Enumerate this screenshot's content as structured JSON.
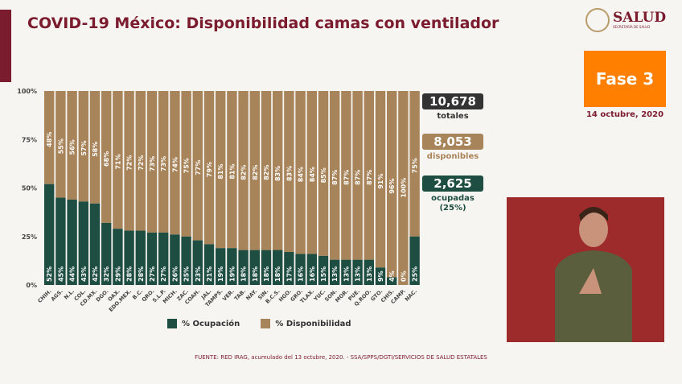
{
  "header": {
    "title": "COVID-19 México: Disponibilidad camas con ventilador",
    "logo": "SALUD",
    "logo_sub": "SECRETARÍA DE SALUD"
  },
  "phase": {
    "label": "Fase 3",
    "color": "#ff7f00",
    "date": "14 octubre, 2020"
  },
  "stats": {
    "total": {
      "value": "10,678",
      "label": "totales",
      "color": "#333333"
    },
    "available": {
      "value": "8,053",
      "label": "disponibles",
      "color": "#a8845a"
    },
    "occupied": {
      "value": "2,625",
      "label": "ocupadas",
      "pct": "(25%)",
      "color": "#1e4d42"
    }
  },
  "legend": {
    "occupied": "% Ocupación",
    "available": "% Disponibilidad"
  },
  "source": "FUENTE: RED IRAG, acumulado del 13 octubre, 2020. -  SSA/SPPS/DGTI/SERVICIOS DE SALUD ESTATALES",
  "chart_data": {
    "type": "bar",
    "stacked": true,
    "ylim": [
      0,
      100
    ],
    "yticks": [
      "0%",
      "25%",
      "50%",
      "75%",
      "100%"
    ],
    "categories": [
      "CHIH.",
      "AGS.",
      "N.L.",
      "COL.",
      "CD.MX.",
      "DGO.",
      "OAX.",
      "EDO.MEX.",
      "B.C.",
      "QRO.",
      "S.L.P.",
      "MICH.",
      "ZAC.",
      "COAH.",
      "JAL.",
      "TAMPS.",
      "VER.",
      "TAB.",
      "NAY.",
      "SIN.",
      "B.C.S.",
      "HGO.",
      "GRO.",
      "TLAX.",
      "YUC.",
      "SON.",
      "MOR.",
      "PUE.",
      "Q.ROO.",
      "GTO.",
      "CHIS.",
      "CAMP.",
      "NAC."
    ],
    "series": [
      {
        "name": "% Ocupación",
        "color": "#1e4d42",
        "values": [
          52,
          45,
          44,
          43,
          42,
          32,
          29,
          28,
          28,
          27,
          27,
          26,
          25,
          23,
          21,
          19,
          19,
          18,
          18,
          18,
          18,
          17,
          16,
          16,
          15,
          13,
          13,
          13,
          13,
          9,
          4,
          0,
          25
        ]
      },
      {
        "name": "% Disponibilidad",
        "color": "#a8845a",
        "values": [
          48,
          55,
          56,
          57,
          58,
          68,
          71,
          72,
          72,
          73,
          73,
          74,
          75,
          77,
          79,
          81,
          81,
          82,
          82,
          82,
          83,
          83,
          84,
          84,
          85,
          87,
          87,
          87,
          87,
          91,
          96,
          100,
          75
        ]
      }
    ]
  }
}
